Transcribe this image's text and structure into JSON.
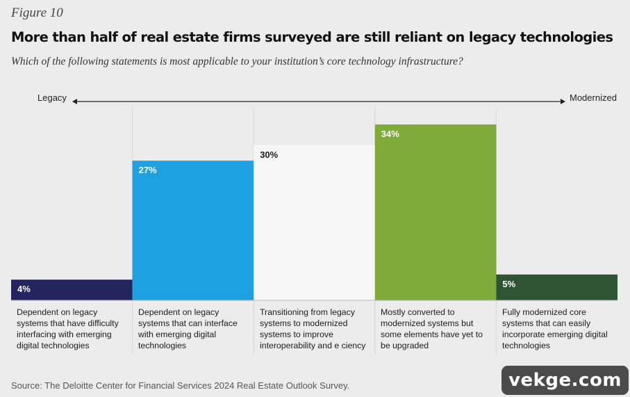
{
  "figure_label": "Figure 10",
  "title": "More than half of real estate firms surveyed are still reliant on legacy technologies",
  "subtitle": "Which of the following statements is most applicable to your institution’s core technology infrastructure?",
  "axis": {
    "left_label": "Legacy",
    "right_label": "Modernized"
  },
  "source": "Source: The Deloitte Center for Financial Services 2024 Real Estate Outlook Survey.",
  "watermark": "vekge.com",
  "chart_data": {
    "type": "bar",
    "title": "More than half of real estate firms surveyed are still reliant on legacy technologies",
    "categories": [
      "Dependent on legacy systems that have difficulty interfacing with emerging digital technologies",
      "Dependent on legacy systems that can interface with emerging digital technologies",
      "Transitioning from legacy systems to modernized systems to improve interoperability and e ciency",
      "Mostly converted to modernized systems but some elements have yet to be upgraded",
      "Fully modernized core systems that can easily incorporate emerging digital technologies"
    ],
    "values": [
      4,
      27,
      30,
      34,
      5
    ],
    "value_labels": [
      "4%",
      "27%",
      "30%",
      "34%",
      "5%"
    ],
    "colors": [
      "#24245e",
      "#1da1e0",
      "#f6f6f6",
      "#7fab3b",
      "#2d5534"
    ],
    "label_colors": [
      "#ffffff",
      "#ffffff",
      "#1a1a1a",
      "#ffffff",
      "#ffffff"
    ],
    "ylim": [
      0,
      34
    ],
    "xlabel": "",
    "ylabel": "",
    "grid": false,
    "legend": "none"
  }
}
